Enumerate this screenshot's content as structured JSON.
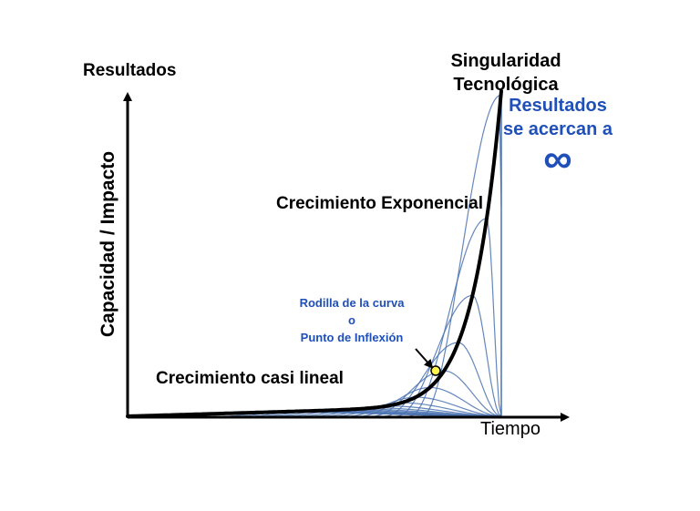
{
  "labels": {
    "y_axis_top": "Resultados",
    "y_axis_side": "Capacidad / Impacto",
    "x_axis": "Tiempo",
    "singularity_line1": "Singularidad",
    "singularity_line2": "Tecnológica",
    "approach_line1": "Resultados",
    "approach_line2": "se acercan a",
    "infinity_symbol": "∞",
    "exponential": "Crecimiento Exponencial",
    "knee_line1": "Rodilla de la curva",
    "knee_line2": "o",
    "knee_line3": "Punto de Inflexión",
    "linear": "Crecimiento casi lineal"
  },
  "colors": {
    "main_curve": "#000000",
    "mesh": "#4a72b0",
    "highlight_text": "#1f4fb8",
    "inflection_dot": "#fff44f"
  }
}
